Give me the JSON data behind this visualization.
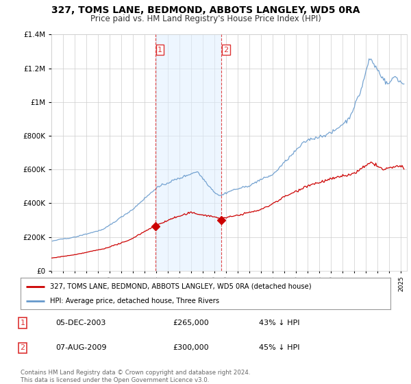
{
  "title": "327, TOMS LANE, BEDMOND, ABBOTS LANGLEY, WD5 0RA",
  "subtitle": "Price paid vs. HM Land Registry's House Price Index (HPI)",
  "legend_line1": "327, TOMS LANE, BEDMOND, ABBOTS LANGLEY, WD5 0RA (detached house)",
  "legend_line2": "HPI: Average price, detached house, Three Rivers",
  "sale1_date": "05-DEC-2003",
  "sale1_price": 265000,
  "sale1_label": "43% ↓ HPI",
  "sale2_date": "07-AUG-2009",
  "sale2_price": 300000,
  "sale2_label": "45% ↓ HPI",
  "sale1_t": 2003.917,
  "sale2_t": 2009.583,
  "red_color": "#cc0000",
  "blue_line_color": "#6699cc",
  "blue_fill_color": "#ddeeff",
  "vline_color": "#dd3333",
  "background_color": "#ffffff",
  "grid_color": "#cccccc",
  "ylim_max": 1400000,
  "xlim_start": 1995.0,
  "xlim_end": 2025.5,
  "footnote": "Contains HM Land Registry data © Crown copyright and database right 2024.\nThis data is licensed under the Open Government Licence v3.0."
}
